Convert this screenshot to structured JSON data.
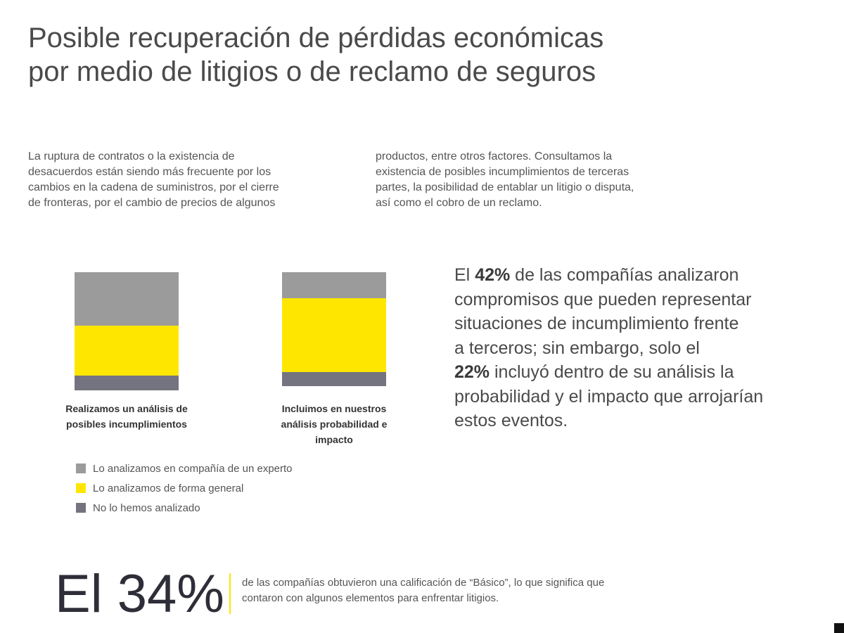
{
  "title": {
    "line1": "Posible recuperación de pérdidas económicas",
    "line2": "por medio de litigios o de reclamo de seguros"
  },
  "intro": {
    "left": [
      "La ruptura de contratos o la existencia de",
      "desacuerdos están siendo más frecuente por los",
      "cambios en la cadena de suministros, por el cierre",
      "de fronteras, por el cambio de precios de algunos"
    ],
    "right": [
      "productos, entre otros factores. Consultamos la",
      "existencia de posibles incumplimientos de terceras",
      "partes, la posibilidad de entablar un litigio o disputa,",
      "así como el cobro de un reclamo."
    ]
  },
  "chart_data": {
    "type": "bar",
    "stacked": true,
    "normalized": true,
    "categories": [
      "Realizamos un análisis de posibles incumplimientos",
      "Incluimos en nuestros análisis probabilidad e impacto"
    ],
    "category_lines": [
      [
        "Realizamos un análisis de",
        "posibles incumplimientos"
      ],
      [
        "Incluimos en nuestros",
        "análisis probabilidad e",
        "impacto"
      ]
    ],
    "series": [
      {
        "name": "Lo analizamos en compañía de un experto",
        "color": "#9b9b9b",
        "values": [
          45,
          23
        ]
      },
      {
        "name": "Lo analizamos de forma general",
        "color": "#ffe600",
        "values": [
          42,
          65
        ]
      },
      {
        "name": "No lo hemos analizado",
        "color": "#747480",
        "values": [
          13,
          12
        ]
      }
    ],
    "ylim": [
      0,
      100
    ],
    "grid": false,
    "legend_position": "bottom-left"
  },
  "stat": {
    "pre1": "El ",
    "value1": "42%",
    "post1": " de las compañías analizaron",
    "line2": "compromisos que pueden representar",
    "line3": "situaciones de incumplimiento frente",
    "line4": "a terceros; sin embargo, solo el",
    "value2": "22%",
    "post2": " incluyó dentro de su análisis la",
    "line6": "probabilidad y el impacto que arrojarían",
    "line7": "estos eventos."
  },
  "big_stat": {
    "value": "El 34%",
    "line1": "de las compañías obtuvieron una calificación de “Básico”, lo que significa que",
    "line2": "contaron con algunos elementos para enfrentar litigios."
  },
  "colors": {
    "accent": "#ffe600",
    "gray_light": "#9b9b9b",
    "gray_dark": "#747480",
    "text": "#4a4a4a"
  }
}
